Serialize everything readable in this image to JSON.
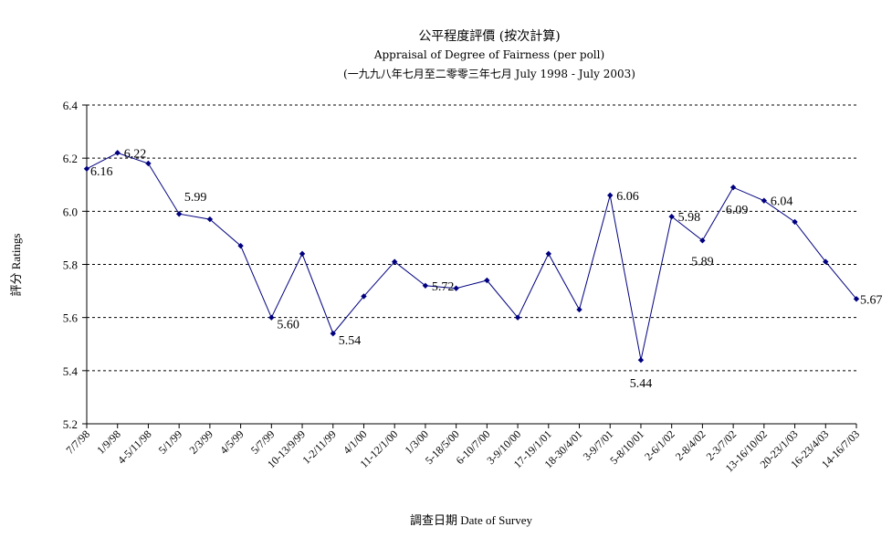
{
  "chart_data": {
    "type": "line",
    "title": "公平程度評價 (按次計算)",
    "subtitle": "Appraisal of Degree of Fairness (per poll)",
    "subtitle2": "(一九九八年七月至二零零三年七月 July 1998 - July 2003)",
    "xlabel": "調查日期 Date of Survey",
    "ylabel": "評分 Ratings",
    "ylim": [
      5.2,
      6.4
    ],
    "yticks": [
      "5.2",
      "5.4",
      "5.6",
      "5.8",
      "6.0",
      "6.2",
      "6.4"
    ],
    "grid": "horizontal dashed",
    "line_color": "#00007f",
    "categories": [
      "7/7/98",
      "1/9/98",
      "4-5/11/98",
      "5/1/99",
      "2/3/99",
      "4/5/99",
      "5/7/99",
      "10-13/9/99",
      "1-2/11/99",
      "4/1/00",
      "11-12/1/00",
      "1/3/00",
      "5-18/5/00",
      "6-10/7/00",
      "3-9/10/00",
      "17-19/1/01",
      "18-30/4/01",
      "3-9/7/01",
      "5-8/10/01",
      "2-6/1/02",
      "2-8/4/02",
      "2-3/7/02",
      "13-16/10/02",
      "20-23/1/03",
      "16-23/4/03",
      "14-16/7/03"
    ],
    "values": [
      6.16,
      6.22,
      6.18,
      5.99,
      5.97,
      5.87,
      5.6,
      5.84,
      5.54,
      5.68,
      5.81,
      5.72,
      5.71,
      5.74,
      5.6,
      5.84,
      5.63,
      6.06,
      5.44,
      5.98,
      5.89,
      6.09,
      6.04,
      5.96,
      5.81,
      5.67
    ],
    "data_labels": [
      {
        "index": 0,
        "text": "6.16"
      },
      {
        "index": 1,
        "text": "6.22"
      },
      {
        "index": 3,
        "text": "5.99"
      },
      {
        "index": 6,
        "text": "5.60"
      },
      {
        "index": 8,
        "text": "5.54"
      },
      {
        "index": 11,
        "text": "5.72"
      },
      {
        "index": 17,
        "text": "6.06"
      },
      {
        "index": 18,
        "text": "5.44"
      },
      {
        "index": 19,
        "text": "5.98"
      },
      {
        "index": 20,
        "text": "5.89"
      },
      {
        "index": 21,
        "text": "6.09"
      },
      {
        "index": 22,
        "text": "6.04"
      },
      {
        "index": 25,
        "text": "5.67"
      }
    ]
  }
}
